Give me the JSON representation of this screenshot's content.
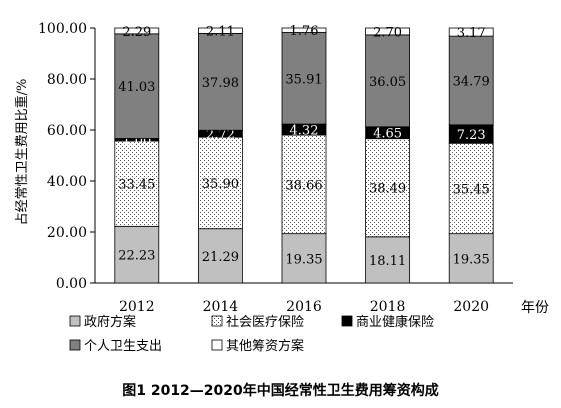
{
  "caption": "图1 2012—2020年中国经常性卫生费用筹资构成",
  "chart_data": {
    "type": "bar",
    "stacked": true,
    "categories": [
      "2012",
      "2014",
      "2016",
      "2018",
      "2020"
    ],
    "xlabel": "年份",
    "ylabel": "占经常性卫生费用比重/%",
    "ylim": [
      0,
      100
    ],
    "yticks": [
      "0.00",
      "20.00",
      "40.00",
      "60.00",
      "80.00",
      "100.00"
    ],
    "grid": false,
    "legend_position": "bottom",
    "series": [
      {
        "name": "政府方案",
        "values": [
          22.23,
          21.29,
          19.35,
          18.11,
          19.35
        ],
        "labels": [
          "22.23",
          "21.29",
          "19.35",
          "18.11",
          "19.35"
        ],
        "fill": "#c0c0c0",
        "pattern": "solid",
        "label_color": "#000000"
      },
      {
        "name": "社会医疗保险",
        "values": [
          33.45,
          35.9,
          38.66,
          38.49,
          35.45
        ],
        "labels": [
          "33.45",
          "35.90",
          "38.66",
          "38.49",
          "35.45"
        ],
        "fill": "#ffffff",
        "pattern": "dots",
        "label_color": "#000000"
      },
      {
        "name": "商业健康保险",
        "values": [
          1.0,
          2.72,
          4.32,
          4.65,
          7.23
        ],
        "labels": [
          "1.00",
          "2.72",
          "4.32",
          "4.65",
          "7.23"
        ],
        "fill": "#000000",
        "pattern": "solid",
        "label_color": "#ffffff"
      },
      {
        "name": "个人卫生支出",
        "values": [
          41.03,
          37.98,
          35.91,
          36.05,
          34.79
        ],
        "labels": [
          "41.03",
          "37.98",
          "35.91",
          "36.05",
          "34.79"
        ],
        "fill": "#808080",
        "pattern": "solid",
        "label_color": "#000000"
      },
      {
        "name": "其他筹资方案",
        "values": [
          2.29,
          2.11,
          1.76,
          2.7,
          3.17
        ],
        "labels": [
          "2.29",
          "2.11",
          "1.76",
          "2.70",
          "3.17"
        ],
        "fill": "#ffffff",
        "pattern": "solid",
        "label_color": "#000000"
      }
    ]
  }
}
